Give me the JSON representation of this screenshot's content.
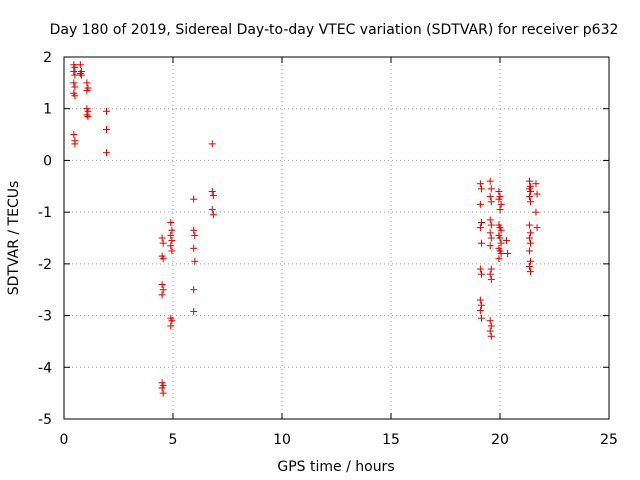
{
  "chart_data": {
    "type": "scatter",
    "title": "Day 180 of 2019, Sidereal Day-to-day VTEC variation (SDTVAR) for receiver p632",
    "xlabel": "GPS time / hours",
    "ylabel": "SDTVAR / TECUs",
    "xlim": [
      0,
      25
    ],
    "ylim": [
      -5,
      2
    ],
    "xticks": [
      0,
      5,
      10,
      15,
      20,
      25
    ],
    "yticks": [
      -5,
      -4,
      -3,
      -2,
      -1,
      0,
      1,
      2
    ],
    "xtick_labels": [
      "0",
      "5",
      "10",
      "15",
      "20",
      "25"
    ],
    "ytick_labels": [
      "-5",
      "-4",
      "-3",
      "-2",
      "-1",
      "0",
      "1",
      "2"
    ],
    "grid": true,
    "marker": "+",
    "color": "#e00000",
    "series": [
      {
        "name": "SDTVAR",
        "points": [
          [
            0.45,
            1.85
          ],
          [
            0.5,
            1.8
          ],
          [
            0.45,
            1.72
          ],
          [
            0.5,
            1.65
          ],
          [
            0.45,
            1.5
          ],
          [
            0.5,
            1.42
          ],
          [
            0.45,
            1.3
          ],
          [
            0.5,
            1.25
          ],
          [
            0.45,
            0.5
          ],
          [
            0.5,
            0.38
          ],
          [
            0.5,
            0.32
          ],
          [
            0.75,
            1.85
          ],
          [
            0.8,
            1.72
          ],
          [
            0.75,
            1.68
          ],
          [
            0.8,
            1.65
          ],
          [
            1.05,
            1.5
          ],
          [
            1.1,
            1.4
          ],
          [
            1.05,
            1.35
          ],
          [
            1.05,
            1.0
          ],
          [
            1.1,
            0.95
          ],
          [
            1.05,
            0.88
          ],
          [
            1.1,
            0.85
          ],
          [
            1.95,
            0.95
          ],
          [
            1.95,
            0.6
          ],
          [
            1.95,
            0.15
          ],
          [
            4.5,
            -1.5
          ],
          [
            4.55,
            -1.6
          ],
          [
            4.5,
            -1.85
          ],
          [
            4.55,
            -1.9
          ],
          [
            4.5,
            -2.4
          ],
          [
            4.55,
            -2.5
          ],
          [
            4.5,
            -2.6
          ],
          [
            4.5,
            -4.3
          ],
          [
            4.55,
            -4.35
          ],
          [
            4.5,
            -4.4
          ],
          [
            4.55,
            -4.5
          ],
          [
            4.9,
            -1.2
          ],
          [
            4.95,
            -1.35
          ],
          [
            4.9,
            -1.45
          ],
          [
            4.95,
            -1.55
          ],
          [
            4.9,
            -1.65
          ],
          [
            4.95,
            -1.75
          ],
          [
            4.9,
            -3.05
          ],
          [
            4.95,
            -3.1
          ],
          [
            4.9,
            -3.2
          ],
          [
            5.95,
            -0.75
          ],
          [
            5.95,
            -1.35
          ],
          [
            6.0,
            -1.45
          ],
          [
            5.95,
            -1.7
          ],
          [
            6.0,
            -1.95
          ],
          [
            5.95,
            -2.5
          ],
          [
            5.95,
            -2.92
          ],
          [
            6.8,
            0.32
          ],
          [
            6.8,
            -0.6
          ],
          [
            6.85,
            -0.68
          ],
          [
            6.8,
            -0.95
          ],
          [
            6.85,
            -1.05
          ],
          [
            19.1,
            -0.45
          ],
          [
            19.15,
            -0.55
          ],
          [
            19.1,
            -0.85
          ],
          [
            19.15,
            -1.2
          ],
          [
            19.1,
            -1.3
          ],
          [
            19.15,
            -1.6
          ],
          [
            19.1,
            -2.1
          ],
          [
            19.15,
            -2.2
          ],
          [
            19.1,
            -2.7
          ],
          [
            19.15,
            -2.8
          ],
          [
            19.1,
            -2.9
          ],
          [
            19.15,
            -3.05
          ],
          [
            19.55,
            -0.4
          ],
          [
            19.6,
            -0.55
          ],
          [
            19.55,
            -0.7
          ],
          [
            19.6,
            -0.8
          ],
          [
            19.55,
            -1.15
          ],
          [
            19.6,
            -1.25
          ],
          [
            19.55,
            -1.4
          ],
          [
            19.6,
            -1.5
          ],
          [
            19.55,
            -1.65
          ],
          [
            19.6,
            -2.1
          ],
          [
            19.55,
            -2.2
          ],
          [
            19.6,
            -2.3
          ],
          [
            19.55,
            -3.1
          ],
          [
            19.6,
            -3.2
          ],
          [
            19.55,
            -3.3
          ],
          [
            19.6,
            -3.4
          ],
          [
            19.95,
            -0.6
          ],
          [
            20.0,
            -0.7
          ],
          [
            19.95,
            -0.75
          ],
          [
            20.05,
            -0.85
          ],
          [
            20.0,
            -0.95
          ],
          [
            19.95,
            -1.25
          ],
          [
            20.0,
            -1.3
          ],
          [
            20.05,
            -1.35
          ],
          [
            19.95,
            -1.45
          ],
          [
            20.0,
            -1.5
          ],
          [
            20.05,
            -1.6
          ],
          [
            19.95,
            -1.7
          ],
          [
            20.0,
            -1.75
          ],
          [
            20.05,
            -1.8
          ],
          [
            19.95,
            -1.9
          ],
          [
            20.3,
            -1.55
          ],
          [
            20.35,
            -1.8
          ],
          [
            21.35,
            -0.4
          ],
          [
            21.4,
            -0.5
          ],
          [
            21.35,
            -0.55
          ],
          [
            21.4,
            -0.6
          ],
          [
            21.35,
            -0.7
          ],
          [
            21.4,
            -0.8
          ],
          [
            21.35,
            -1.25
          ],
          [
            21.4,
            -1.4
          ],
          [
            21.35,
            -1.5
          ],
          [
            21.4,
            -1.6
          ],
          [
            21.35,
            -1.75
          ],
          [
            21.4,
            -1.95
          ],
          [
            21.35,
            -2.05
          ],
          [
            21.4,
            -2.15
          ],
          [
            21.65,
            -0.45
          ],
          [
            21.7,
            -0.65
          ],
          [
            21.65,
            -1.0
          ],
          [
            21.7,
            -1.3
          ]
        ]
      }
    ]
  }
}
